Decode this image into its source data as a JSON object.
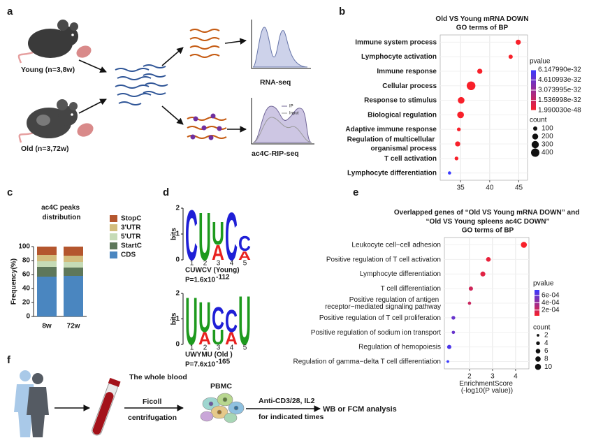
{
  "panel_labels": [
    "a",
    "b",
    "c",
    "d",
    "e",
    "f"
  ],
  "diagram_a": {
    "young": "Young (n=3,8w)",
    "old": "Old (n=3,72w)",
    "rna_seq": "RNA-seq",
    "rip_seq": "ac4C-RIP-seq",
    "legend": [
      "IP",
      "Input"
    ]
  },
  "chart_data": [
    {
      "type": "dot",
      "title": "Old VS Young mRNA DOWN",
      "subtitle": "GO terms of BP",
      "categories": [
        "Immune system process",
        "Lymphocyte activation",
        "Immune response",
        "Cellular process",
        "Response to stimulus",
        "Biological regulation",
        "Adaptive immune response",
        "Regulation of multicellular organismal process",
        "T cell activation",
        "Lymphocyte differentiation"
      ],
      "values": [
        44.9,
        43.6,
        38.3,
        36.8,
        35.1,
        35.0,
        34.7,
        34.5,
        34.3,
        33.1
      ],
      "counts": [
        150,
        100,
        150,
        430,
        250,
        260,
        80,
        150,
        80,
        60
      ],
      "pvalues": [
        1.99003e-48,
        2e-47,
        5e-46,
        3e-45,
        1e-42,
        4e-42,
        2e-41,
        1e-40,
        3e-40,
        6.14799e-32
      ],
      "xlim": [
        31.5,
        46.5
      ],
      "xticks": [
        35,
        40,
        45
      ],
      "grid": true,
      "pvalue_title": "pvalue",
      "plim": [
        1.99003e-48,
        6.14799e-32
      ],
      "pvalue_ticks": [
        {
          "value": 6.14799e-32,
          "label": "6.147990e-32"
        },
        {
          "value": 4.610993e-32,
          "label": "4.610993e-32"
        },
        {
          "value": 3.073995e-32,
          "label": "3.073995e-32"
        },
        {
          "value": 1.536998e-32,
          "label": "1.536998e-32"
        },
        {
          "value": 1.99003e-48,
          "label": "1.990030e-48"
        }
      ],
      "pvalue_colors": {
        "low": "#f8202a",
        "high": "#3a3aff"
      },
      "count_title": "count",
      "count_ticks": [
        100,
        200,
        300,
        400
      ]
    },
    {
      "type": "bar",
      "stacked": true,
      "title": "ac4C peaks distribution",
      "ylabel": "Frequency(%)",
      "categories": [
        "8w",
        "72w"
      ],
      "series": [
        {
          "name": "CDS",
          "color": "#4a86c0",
          "values": [
            57,
            58
          ]
        },
        {
          "name": "StartC",
          "color": "#5e775a",
          "values": [
            14,
            12
          ]
        },
        {
          "name": "5'UTR",
          "color": "#c6dbb6",
          "values": [
            8,
            8
          ]
        },
        {
          "name": "3'UTR",
          "color": "#d3bd7d",
          "values": [
            9,
            9
          ]
        },
        {
          "name": "StopC",
          "color": "#b4562e",
          "values": [
            12,
            13
          ]
        }
      ],
      "ylim": [
        0,
        100
      ],
      "yticks": [
        0,
        20,
        40,
        60,
        80,
        100
      ]
    },
    {
      "type": "dot",
      "title": "Overlapped genes of “Old VS Young  mRNA DOWN” and “Old VS Young spleens ac4C DOWN”",
      "subtitle": "GO terms of BP",
      "xlabel": "EnrichmentScore (-log10(P value))",
      "categories": [
        "Leukocyte cell−cell adhesion",
        "Positive regulation of T cell activation",
        "Lymphocyte differentiation",
        "T cell differentiation",
        "Positive regulation of antigen receptor−mediated signaling pathway",
        "Positive regulation of T cell proliferation",
        "Positive regulation of sodium ion transport",
        "Regulation of hemopoiesis",
        "Regulation of gamma−delta T cell differentiation"
      ],
      "values": [
        4.36,
        2.82,
        2.58,
        2.06,
        2.0,
        1.3,
        1.3,
        1.12,
        1.06
      ],
      "counts": [
        10,
        6,
        7,
        5,
        3,
        4,
        3,
        5,
        2
      ],
      "pvalues": [
        4.4e-05,
        0.0001,
        0.00013,
        0.0002,
        0.00022,
        0.00058,
        0.00058,
        0.00068,
        0.00075
      ],
      "xlim": [
        0.91,
        4.58
      ],
      "xticks": [
        2,
        3,
        4
      ],
      "grid": true,
      "pvalue_title": "pvalue",
      "plim": [
        4.4e-05,
        0.00075
      ],
      "pvalue_ticks": [
        {
          "value": 0.0006,
          "label": "6e-04"
        },
        {
          "value": 0.0004,
          "label": "4e-04"
        },
        {
          "value": 0.0002,
          "label": "2e-04"
        }
      ],
      "pvalue_colors": {
        "low": "#f8202a",
        "high": "#3a3aff"
      },
      "count_title": "count",
      "count_ticks": [
        2,
        4,
        6,
        8,
        10
      ]
    }
  ],
  "motifs": {
    "ylabel": "bits",
    "ylim": [
      0,
      2
    ],
    "yticks": [
      0,
      1,
      2
    ],
    "positions": [
      1,
      2,
      3,
      4,
      5
    ],
    "letter_colors": {
      "A": "#e8201e",
      "C": "#1f1fd6",
      "U": "#1e9a1e"
    },
    "logos": [
      {
        "name": "CUWCV (Young)",
        "p": "P=1.6x10",
        "p_exp": "-112",
        "columns": [
          [
            {
              "letter": "C",
              "bits": 1.98
            }
          ],
          [
            {
              "letter": "U",
              "bits": 1.9
            }
          ],
          [
            {
              "letter": "A",
              "bits": 0.6
            },
            {
              "letter": "U",
              "bits": 0.9
            }
          ],
          [
            {
              "letter": "C",
              "bits": 1.9
            }
          ],
          [
            {
              "letter": "A",
              "bits": 0.35
            },
            {
              "letter": "C",
              "bits": 0.6
            }
          ]
        ]
      },
      {
        "name": "UWYMU (Old )",
        "p": "P=7.6x10",
        "p_exp": "-165",
        "columns": [
          [
            {
              "letter": "U",
              "bits": 1.9
            }
          ],
          [
            {
              "letter": "A",
              "bits": 0.5
            },
            {
              "letter": "U",
              "bits": 1.2
            }
          ],
          [
            {
              "letter": "U",
              "bits": 0.6
            },
            {
              "letter": "C",
              "bits": 0.9
            }
          ],
          [
            {
              "letter": "A",
              "bits": 0.5
            },
            {
              "letter": "C",
              "bits": 0.9
            }
          ],
          [
            {
              "letter": "U",
              "bits": 1.95
            }
          ]
        ]
      }
    ]
  },
  "diagram_f": {
    "blood": "The whole blood",
    "ficoll": "Ficoll",
    "centrifugation": "centrifugation",
    "pbmc": "PBMC",
    "stim": "Anti-CD3/28, IL2",
    "times": "for indicated times",
    "analysis": "WB or FCM analysis"
  }
}
